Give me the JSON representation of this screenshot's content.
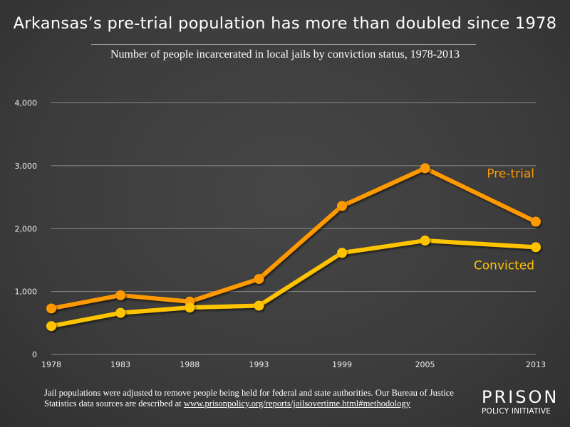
{
  "chart_data": {
    "type": "line",
    "title": "Arkansas’s pre-trial population has more than doubled since 1978",
    "subtitle": "Number of people incarcerated in local jails by conviction status, 1978-2013",
    "x": [
      1978,
      1983,
      1988,
      1993,
      1999,
      2005,
      2013
    ],
    "x_tick_labels": [
      "1978",
      "1983",
      "1988",
      "1993",
      "1999",
      "2005",
      "2013"
    ],
    "y_ticks": [
      0,
      1000,
      2000,
      3000,
      4000
    ],
    "y_tick_labels": [
      "0",
      "1,000",
      "2,000",
      "3,000",
      "4,000"
    ],
    "ylim": [
      0,
      4000
    ],
    "xlim": [
      1978,
      2013
    ],
    "grid": "horizontal",
    "series": [
      {
        "name": "Pre-trial",
        "color": "#ff9900",
        "values": [
          730,
          940,
          840,
          1200,
          2360,
          2960,
          2110
        ]
      },
      {
        "name": "Convicted",
        "color": "#ffc400",
        "values": [
          450,
          660,
          745,
          775,
          1615,
          1810,
          1705
        ]
      }
    ]
  },
  "footnote": {
    "text": "Jail populations were adjusted to remove people being held for federal and state authorities. Our Bureau of Justice Statistics data sources are described at ",
    "link": "www.prisonpolicy.org/reports/jailsovertime.html#methodology"
  },
  "logo": {
    "line1": "PRISON",
    "line2": "POLICY INITIATIVE"
  },
  "colors": {
    "background": "#3e3e3e",
    "grid": "#8a8a8a"
  }
}
